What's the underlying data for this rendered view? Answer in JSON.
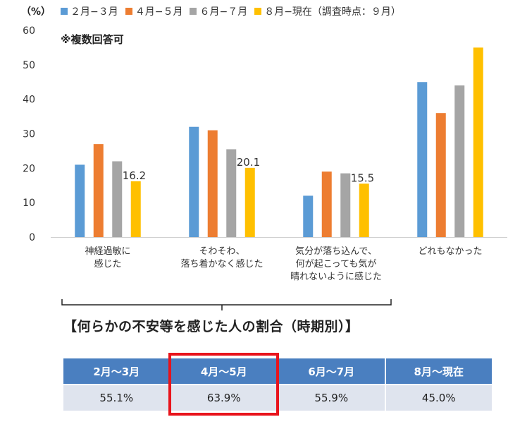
{
  "header": {
    "unit_label": "（%）",
    "note": "※複数回答可"
  },
  "chart_data": {
    "type": "bar",
    "categories": [
      [
        "神経過敏に",
        "感じた"
      ],
      [
        "そわそわ、",
        "落ち着かなく感じた"
      ],
      [
        "気分が落ち込んで、",
        "何が起こっても気が",
        "晴れないように感じた"
      ],
      [
        "どれもなかった"
      ]
    ],
    "series": [
      {
        "name": "２月−３月",
        "color": "#5b9bd5",
        "values": [
          21,
          32,
          12,
          45
        ]
      },
      {
        "name": "４月−５月",
        "color": "#ed7d31",
        "values": [
          27,
          31,
          19,
          36
        ]
      },
      {
        "name": "６月−７月",
        "color": "#a5a5a5",
        "values": [
          22,
          25.5,
          18.5,
          44
        ]
      },
      {
        "name": "８月−現在（調査時点：９月）",
        "color": "#ffc000",
        "values": [
          16.2,
          20.1,
          15.5,
          55
        ]
      }
    ],
    "data_labels": [
      {
        "series": 3,
        "category": 0,
        "text": "16.2"
      },
      {
        "series": 3,
        "category": 1,
        "text": "20.1"
      },
      {
        "series": 3,
        "category": 2,
        "text": "15.5"
      }
    ],
    "y_ticks": [
      "0",
      "10",
      "20",
      "30",
      "40",
      "50",
      "60"
    ],
    "ylim": [
      0,
      60
    ],
    "grid": false,
    "legend_position": "top"
  },
  "summary": {
    "title": "【何らかの不安等を感じた人の割合（時期別）】",
    "headers": [
      "2月～3月",
      "4月～5月",
      "6月～7月",
      "8月～現在"
    ],
    "values": [
      "55.1%",
      "63.9%",
      "55.9%",
      "45.0%"
    ],
    "highlighted_column": "4月～5月"
  }
}
